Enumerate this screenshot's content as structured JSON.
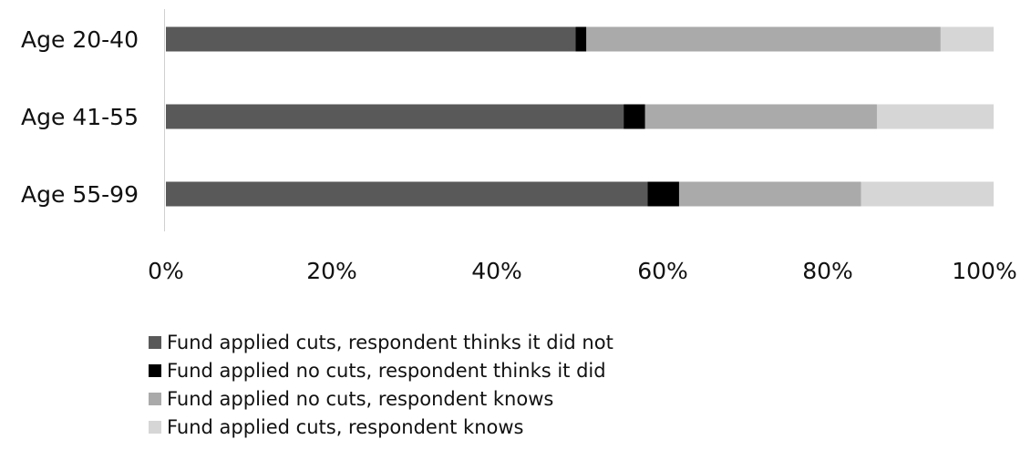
{
  "chart_data": {
    "type": "bar",
    "orientation": "horizontal",
    "stacked": true,
    "normalized": true,
    "categories": [
      "Age 20-40",
      "Age 41-55",
      "Age 55-99"
    ],
    "series": [
      {
        "name": "Fund applied cuts, respondent thinks it did not",
        "color": "#595959",
        "values": [
          49.5,
          55.3,
          58.2
        ]
      },
      {
        "name": "Fund applied no cuts, respondent thinks it did",
        "color": "#000000",
        "values": [
          1.3,
          2.6,
          3.8
        ]
      },
      {
        "name": "Fund applied no cuts, respondent knows",
        "color": "#aaaaaa",
        "values": [
          42.8,
          28.0,
          22.0
        ]
      },
      {
        "name": "Fund applied cuts, respondent knows",
        "color": "#d6d6d6",
        "values": [
          6.4,
          14.1,
          16.0
        ]
      }
    ],
    "xlim": [
      0,
      100
    ],
    "xticks": [
      "0%",
      "20%",
      "40%",
      "60%",
      "80%",
      "100%"
    ],
    "grid": false,
    "legend_position": "bottom"
  }
}
